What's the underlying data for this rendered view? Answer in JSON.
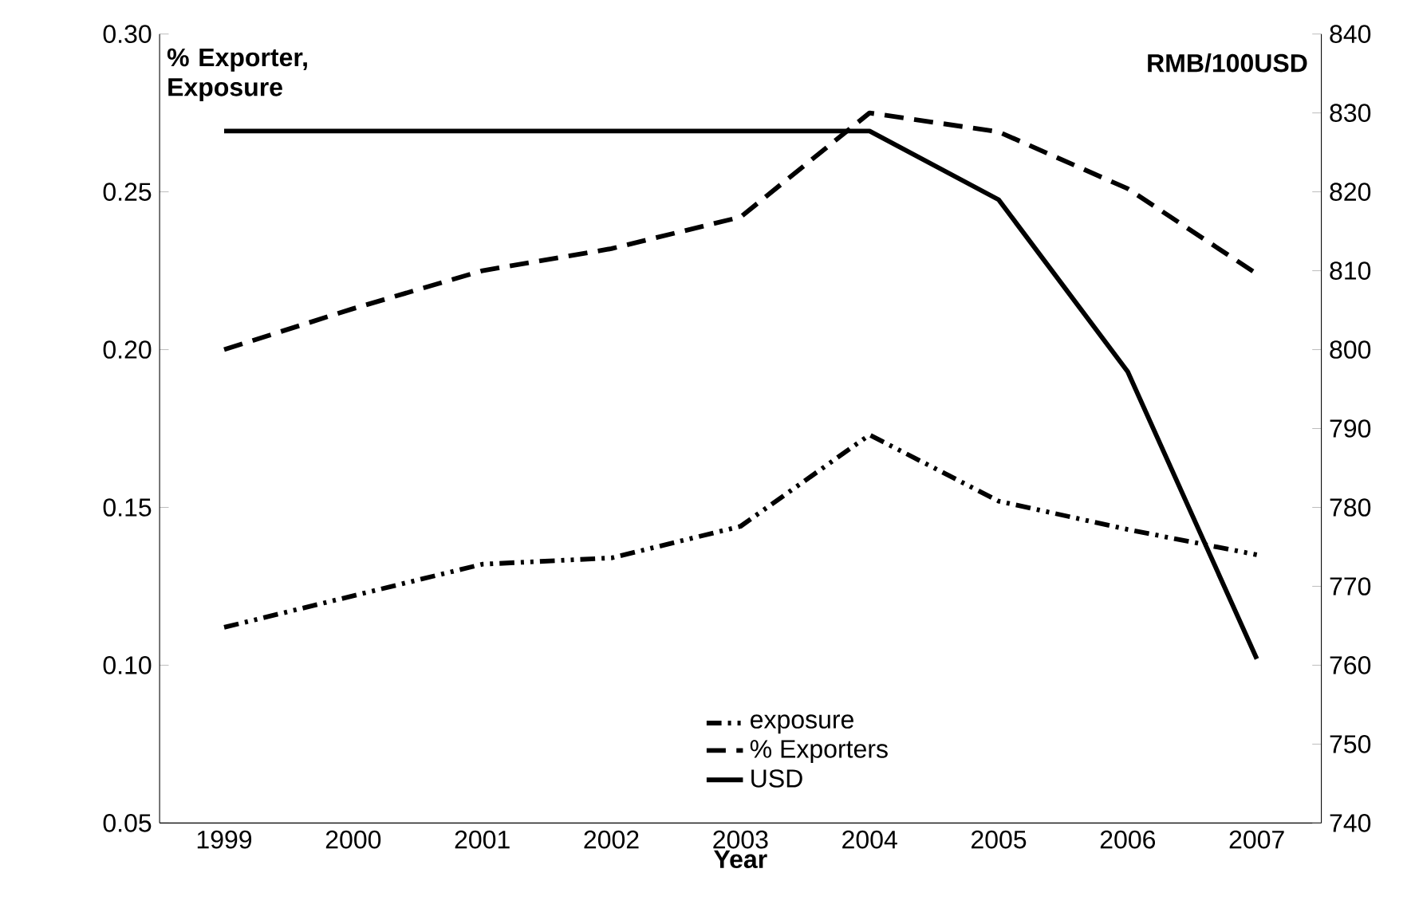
{
  "chart_data": {
    "type": "line",
    "xlabel": "Year",
    "ylabel": "% Exporter, Exposure",
    "y2label": "RMB/100USD",
    "categories": [
      "1999",
      "2000",
      "2001",
      "2002",
      "2003",
      "2004",
      "2005",
      "2006",
      "2007"
    ],
    "series": [
      {
        "name": "exposure",
        "color": "#000000",
        "line_style": "dotted",
        "values": [
          0.112,
          0.122,
          0.132,
          0.134,
          0.144,
          0.173,
          0.152,
          0.143,
          0.135
        ]
      },
      {
        "name": "% Exporters",
        "color": "#000000",
        "line_style": "dashed",
        "values": [
          0.2,
          0.213,
          0.225,
          0.232,
          0.242,
          0.275,
          0.269,
          0.251,
          0.224
        ]
      },
      {
        "name": "USD",
        "color": "#000000",
        "line_style": "solid",
        "axis": "y2",
        "values": [
          827.7,
          827.7,
          827.7,
          827.7,
          827.7,
          827.7,
          819,
          797.2,
          760.8
        ]
      }
    ],
    "ylim": [
      0.05,
      0.3
    ],
    "yticks": [
      {
        "value": 0.05,
        "label": "0.05"
      },
      {
        "value": 0.1,
        "label": "0.10"
      },
      {
        "value": 0.15,
        "label": "0.15"
      },
      {
        "value": 0.2,
        "label": "0.20"
      },
      {
        "value": 0.25,
        "label": "0.25"
      },
      {
        "value": 0.3,
        "label": "0.30"
      }
    ],
    "y2lim": [
      740,
      840
    ],
    "y2ticks": [
      740,
      750,
      760,
      770,
      780,
      790,
      800,
      810,
      820,
      830,
      840
    ],
    "legend": "bottom",
    "grid": false
  }
}
